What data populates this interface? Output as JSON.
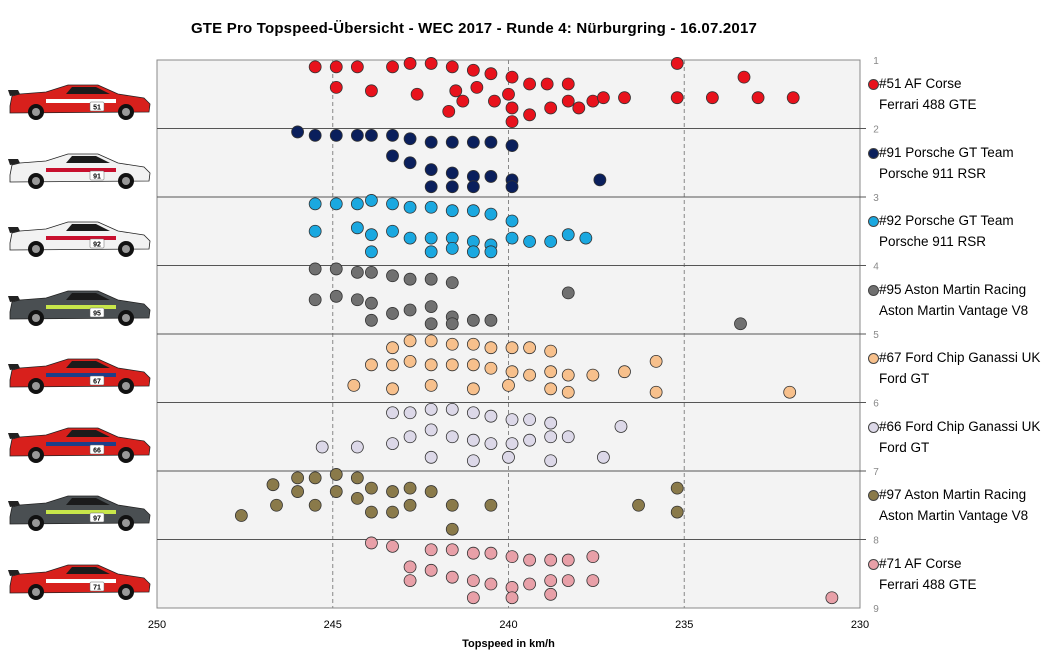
{
  "title": "GTE Pro Topspeed-Übersicht  - WEC 2017  - Runde  4: Nürburgring  - 16.07.2017",
  "chart_data": {
    "type": "scatter",
    "title": "GTE Pro Topspeed-Übersicht  - WEC 2017  - Runde  4: Nürburgring  - 16.07.2017",
    "xlabel": "Topspeed in km/h",
    "ylabel": "",
    "x_reversed": true,
    "xlim": [
      250,
      230
    ],
    "ylim": [
      1,
      9
    ],
    "x_ticks": [
      250,
      245,
      240,
      235,
      230
    ],
    "y_ticks": [
      1,
      2,
      3,
      4,
      5,
      6,
      7,
      8,
      9
    ],
    "grid": "vertical dashed at x ticks, horizontal solid at integer y",
    "legend_position": "right",
    "series": [
      {
        "name": "#51 AF Corse",
        "subtitle": "Ferrari 488 GTE",
        "color": "#e8121c",
        "car_number": "51",
        "points": [
          [
            245.5,
            1.1
          ],
          [
            244.9,
            1.1
          ],
          [
            244.3,
            1.1
          ],
          [
            243.3,
            1.1
          ],
          [
            242.8,
            1.05
          ],
          [
            242.2,
            1.05
          ],
          [
            241.6,
            1.1
          ],
          [
            241.0,
            1.15
          ],
          [
            240.5,
            1.2
          ],
          [
            239.9,
            1.25
          ],
          [
            239.4,
            1.35
          ],
          [
            238.9,
            1.35
          ],
          [
            238.3,
            1.35
          ],
          [
            237.6,
            1.6
          ],
          [
            236.7,
            1.55
          ],
          [
            235.2,
            1.05
          ],
          [
            235.2,
            1.55
          ],
          [
            233.3,
            1.25
          ],
          [
            232.9,
            1.55
          ],
          [
            234.2,
            1.55
          ],
          [
            231.9,
            1.55
          ],
          [
            244.9,
            1.4
          ],
          [
            243.9,
            1.45
          ],
          [
            242.6,
            1.5
          ],
          [
            241.5,
            1.45
          ],
          [
            240.9,
            1.4
          ],
          [
            240.4,
            1.6
          ],
          [
            239.9,
            1.7
          ],
          [
            239.4,
            1.8
          ],
          [
            238.8,
            1.7
          ],
          [
            238.3,
            1.6
          ],
          [
            238.0,
            1.7
          ],
          [
            237.3,
            1.55
          ],
          [
            241.7,
            1.75
          ],
          [
            240.0,
            1.5
          ],
          [
            239.9,
            1.9
          ],
          [
            241.3,
            1.6
          ]
        ]
      },
      {
        "name": "#91 Porsche GT Team",
        "subtitle": "Porsche 911 RSR",
        "color": "#0a1f5c",
        "car_number": "91",
        "points": [
          [
            246.0,
            2.05
          ],
          [
            245.5,
            2.1
          ],
          [
            244.9,
            2.1
          ],
          [
            244.3,
            2.1
          ],
          [
            243.9,
            2.1
          ],
          [
            243.3,
            2.1
          ],
          [
            242.8,
            2.15
          ],
          [
            242.2,
            2.2
          ],
          [
            241.6,
            2.2
          ],
          [
            241.0,
            2.2
          ],
          [
            240.5,
            2.2
          ],
          [
            239.9,
            2.25
          ],
          [
            243.3,
            2.4
          ],
          [
            242.8,
            2.5
          ],
          [
            242.2,
            2.6
          ],
          [
            241.6,
            2.65
          ],
          [
            241.0,
            2.7
          ],
          [
            240.5,
            2.7
          ],
          [
            239.9,
            2.75
          ],
          [
            239.9,
            2.85
          ],
          [
            237.4,
            2.75
          ],
          [
            242.2,
            2.85
          ],
          [
            241.6,
            2.85
          ],
          [
            241.0,
            2.85
          ]
        ]
      },
      {
        "name": "#92 Porsche GT Team",
        "subtitle": "Porsche 911 RSR",
        "color": "#1aa8e0",
        "car_number": "92",
        "points": [
          [
            245.5,
            3.1
          ],
          [
            244.9,
            3.1
          ],
          [
            244.3,
            3.1
          ],
          [
            243.9,
            3.05
          ],
          [
            243.3,
            3.1
          ],
          [
            242.8,
            3.15
          ],
          [
            242.2,
            3.15
          ],
          [
            241.6,
            3.2
          ],
          [
            241.0,
            3.2
          ],
          [
            240.5,
            3.25
          ],
          [
            239.9,
            3.35
          ],
          [
            245.5,
            3.5
          ],
          [
            244.3,
            3.45
          ],
          [
            243.9,
            3.55
          ],
          [
            243.3,
            3.5
          ],
          [
            242.8,
            3.6
          ],
          [
            242.2,
            3.6
          ],
          [
            241.6,
            3.6
          ],
          [
            241.0,
            3.65
          ],
          [
            240.5,
            3.7
          ],
          [
            239.9,
            3.6
          ],
          [
            239.4,
            3.65
          ],
          [
            238.8,
            3.65
          ],
          [
            238.3,
            3.55
          ],
          [
            237.8,
            3.6
          ],
          [
            243.9,
            3.8
          ],
          [
            242.2,
            3.8
          ],
          [
            241.6,
            3.75
          ],
          [
            241.0,
            3.8
          ],
          [
            240.5,
            3.8
          ]
        ]
      },
      {
        "name": "#95 Aston Martin Racing",
        "subtitle": "Aston Martin Vantage V8",
        "color": "#707070",
        "car_number": "95",
        "points": [
          [
            245.5,
            4.05
          ],
          [
            244.9,
            4.05
          ],
          [
            244.3,
            4.1
          ],
          [
            243.9,
            4.1
          ],
          [
            243.3,
            4.15
          ],
          [
            242.8,
            4.2
          ],
          [
            242.2,
            4.2
          ],
          [
            241.6,
            4.25
          ],
          [
            245.5,
            4.5
          ],
          [
            244.9,
            4.45
          ],
          [
            244.3,
            4.5
          ],
          [
            243.9,
            4.55
          ],
          [
            243.3,
            4.7
          ],
          [
            242.8,
            4.65
          ],
          [
            242.2,
            4.6
          ],
          [
            241.6,
            4.75
          ],
          [
            241.0,
            4.8
          ],
          [
            240.5,
            4.8
          ],
          [
            238.3,
            4.4
          ],
          [
            233.4,
            4.85
          ],
          [
            243.9,
            4.8
          ],
          [
            242.2,
            4.85
          ],
          [
            241.6,
            4.85
          ]
        ]
      },
      {
        "name": "#67 Ford Chip Ganassi UK",
        "subtitle": "Ford GT",
        "color": "#f7c08c",
        "car_number": "67",
        "points": [
          [
            243.3,
            5.2
          ],
          [
            242.8,
            5.1
          ],
          [
            242.2,
            5.1
          ],
          [
            241.6,
            5.15
          ],
          [
            241.0,
            5.15
          ],
          [
            240.5,
            5.2
          ],
          [
            239.9,
            5.2
          ],
          [
            239.4,
            5.2
          ],
          [
            238.8,
            5.25
          ],
          [
            243.9,
            5.45
          ],
          [
            243.3,
            5.45
          ],
          [
            242.8,
            5.4
          ],
          [
            242.2,
            5.45
          ],
          [
            241.6,
            5.45
          ],
          [
            241.0,
            5.45
          ],
          [
            240.5,
            5.5
          ],
          [
            239.9,
            5.55
          ],
          [
            239.4,
            5.6
          ],
          [
            238.8,
            5.55
          ],
          [
            238.3,
            5.6
          ],
          [
            237.6,
            5.6
          ],
          [
            235.8,
            5.4
          ],
          [
            236.7,
            5.55
          ],
          [
            232.0,
            5.85
          ],
          [
            235.8,
            5.85
          ],
          [
            244.4,
            5.75
          ],
          [
            243.3,
            5.8
          ],
          [
            242.2,
            5.75
          ],
          [
            241.0,
            5.8
          ],
          [
            240.0,
            5.75
          ],
          [
            238.8,
            5.8
          ],
          [
            238.3,
            5.85
          ]
        ]
      },
      {
        "name": "#66 Ford Chip Ganassi UK",
        "subtitle": "Ford GT",
        "color": "#dcd8e8",
        "car_number": "66",
        "points": [
          [
            243.3,
            6.15
          ],
          [
            242.8,
            6.15
          ],
          [
            242.2,
            6.1
          ],
          [
            241.6,
            6.1
          ],
          [
            241.0,
            6.15
          ],
          [
            240.5,
            6.2
          ],
          [
            239.9,
            6.25
          ],
          [
            239.4,
            6.25
          ],
          [
            238.8,
            6.3
          ],
          [
            236.8,
            6.35
          ],
          [
            243.3,
            6.6
          ],
          [
            242.8,
            6.5
          ],
          [
            242.2,
            6.4
          ],
          [
            241.6,
            6.5
          ],
          [
            241.0,
            6.55
          ],
          [
            240.5,
            6.6
          ],
          [
            239.9,
            6.6
          ],
          [
            239.4,
            6.55
          ],
          [
            238.8,
            6.5
          ],
          [
            238.3,
            6.5
          ],
          [
            237.3,
            6.8
          ],
          [
            245.3,
            6.65
          ],
          [
            244.3,
            6.65
          ],
          [
            242.2,
            6.8
          ],
          [
            241.0,
            6.85
          ],
          [
            240.0,
            6.8
          ],
          [
            238.8,
            6.85
          ]
        ]
      },
      {
        "name": "#97 Aston Martin Racing",
        "subtitle": "Aston Martin Vantage V8",
        "color": "#8a7a4a",
        "car_number": "97",
        "points": [
          [
            247.6,
            7.65
          ],
          [
            246.7,
            7.2
          ],
          [
            246.6,
            7.5
          ],
          [
            246.0,
            7.1
          ],
          [
            246.0,
            7.3
          ],
          [
            245.5,
            7.1
          ],
          [
            245.5,
            7.5
          ],
          [
            244.9,
            7.05
          ],
          [
            244.9,
            7.3
          ],
          [
            244.3,
            7.1
          ],
          [
            244.3,
            7.4
          ],
          [
            243.9,
            7.25
          ],
          [
            243.3,
            7.3
          ],
          [
            242.8,
            7.25
          ],
          [
            242.2,
            7.3
          ],
          [
            241.6,
            7.5
          ],
          [
            240.5,
            7.5
          ],
          [
            236.3,
            7.5
          ],
          [
            235.2,
            7.25
          ],
          [
            235.2,
            7.6
          ],
          [
            243.9,
            7.6
          ],
          [
            243.3,
            7.6
          ],
          [
            242.8,
            7.5
          ],
          [
            241.6,
            7.85
          ]
        ]
      },
      {
        "name": "#71 AF Corse",
        "subtitle": "Ferrari 488 GTE",
        "color": "#e8a0a8",
        "car_number": "71",
        "points": [
          [
            243.9,
            8.05
          ],
          [
            243.3,
            8.1
          ],
          [
            242.2,
            8.15
          ],
          [
            241.6,
            8.15
          ],
          [
            241.0,
            8.2
          ],
          [
            240.5,
            8.2
          ],
          [
            239.9,
            8.25
          ],
          [
            239.4,
            8.3
          ],
          [
            238.8,
            8.3
          ],
          [
            238.3,
            8.3
          ],
          [
            237.6,
            8.25
          ],
          [
            242.8,
            8.4
          ],
          [
            242.2,
            8.45
          ],
          [
            241.6,
            8.55
          ],
          [
            241.0,
            8.6
          ],
          [
            240.5,
            8.65
          ],
          [
            239.9,
            8.7
          ],
          [
            239.4,
            8.65
          ],
          [
            238.8,
            8.6
          ],
          [
            238.3,
            8.6
          ],
          [
            237.6,
            8.6
          ],
          [
            242.8,
            8.6
          ],
          [
            241.0,
            8.85
          ],
          [
            239.9,
            8.85
          ],
          [
            238.8,
            8.8
          ],
          [
            230.8,
            8.85
          ]
        ]
      }
    ]
  }
}
